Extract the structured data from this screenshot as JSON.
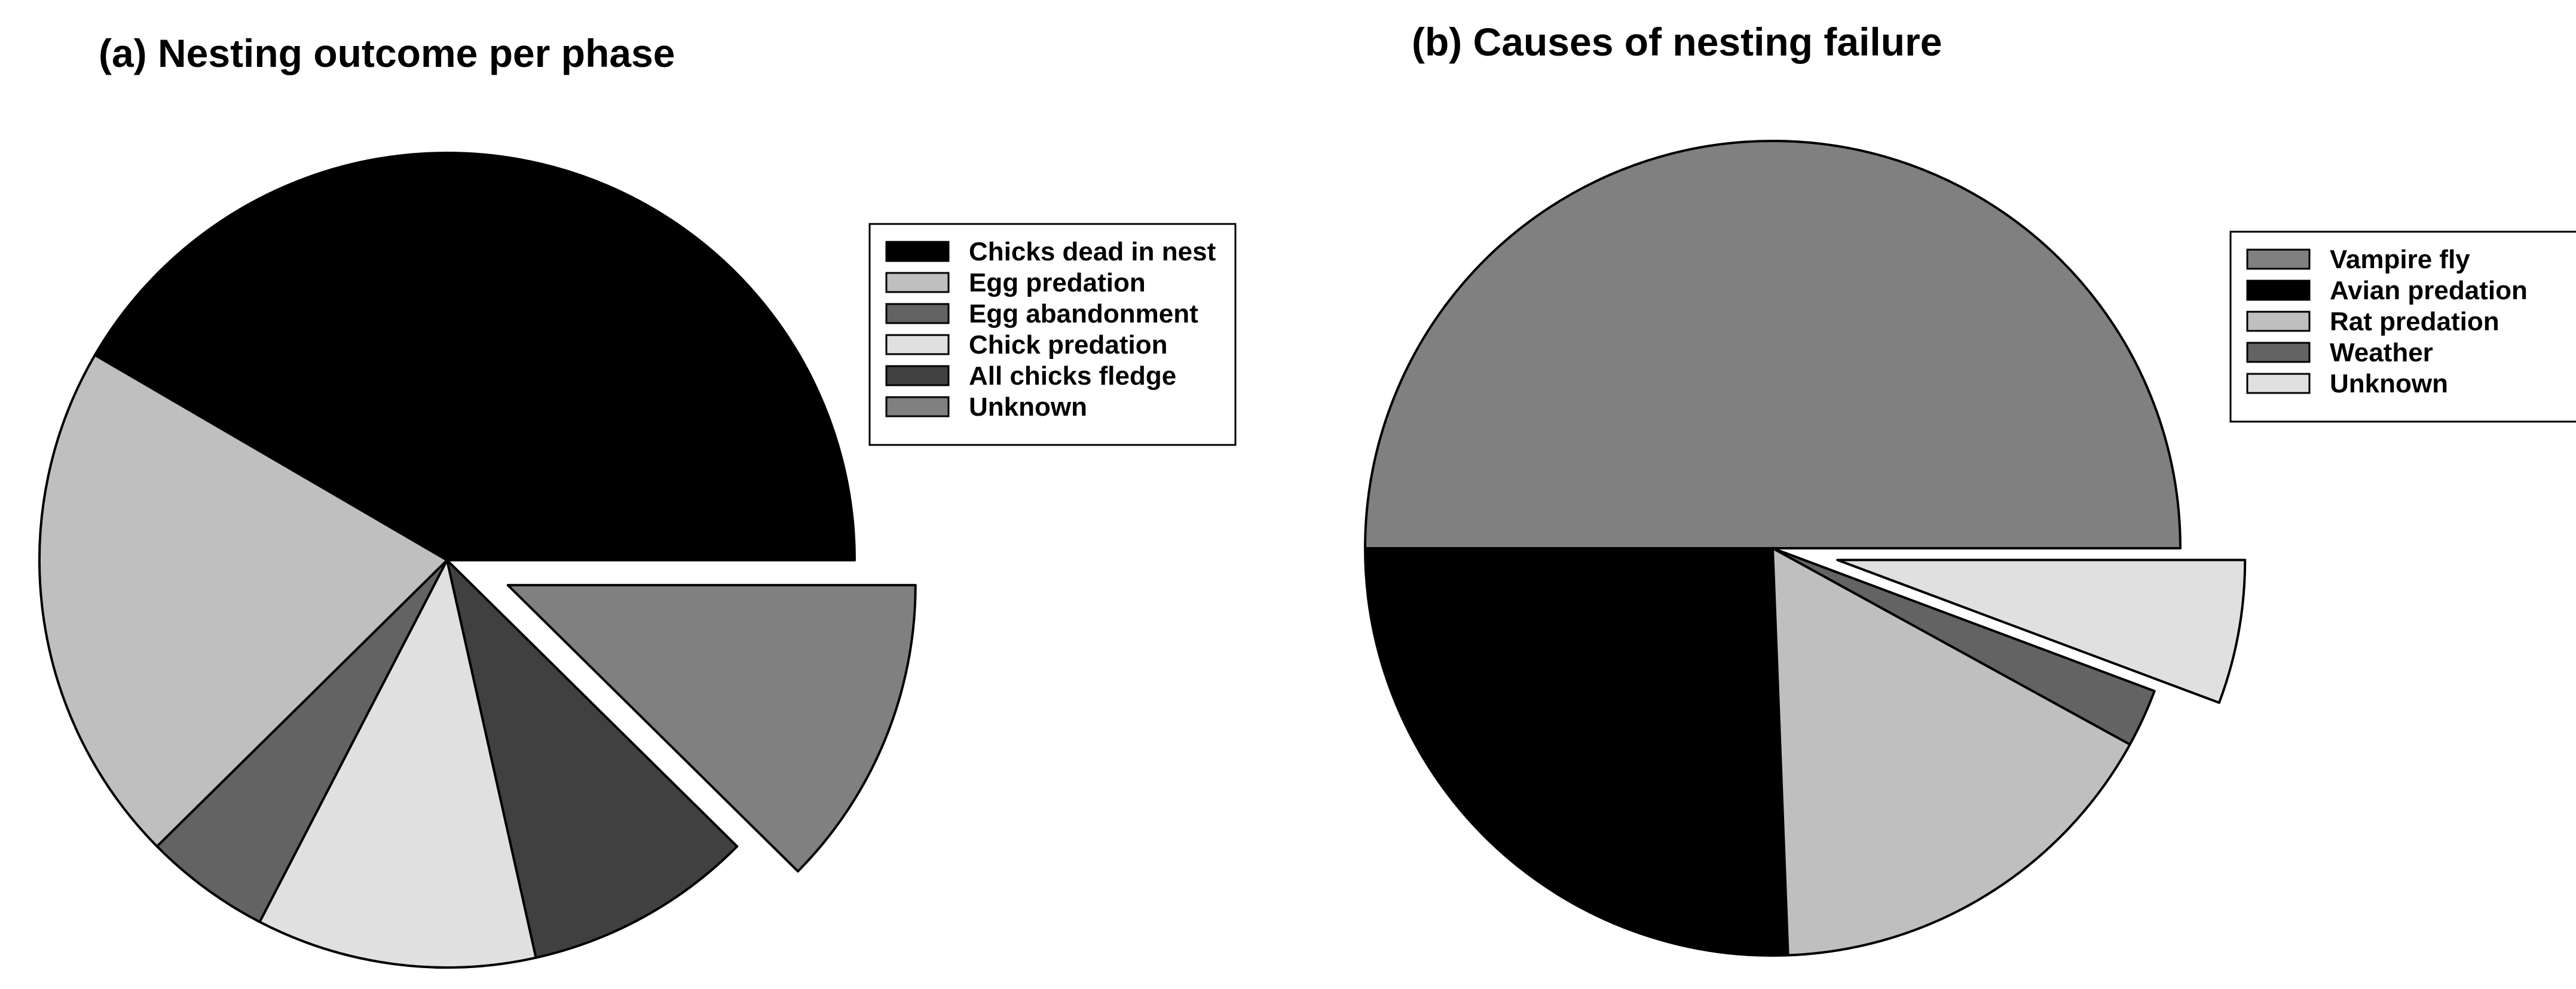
{
  "chart_data": [
    {
      "type": "pie",
      "title": "(a) Nesting outcome per phase",
      "legend_position": "right",
      "slices": [
        {
          "label": "Chicks dead in nest",
          "value": 41.6,
          "color": "#000000",
          "exploded": false
        },
        {
          "label": "Egg predation",
          "value": 20.8,
          "color": "#bfbfbf",
          "exploded": false
        },
        {
          "label": "Egg abandonment",
          "value": 5.0,
          "color": "#636363",
          "exploded": false
        },
        {
          "label": "Chick predation",
          "value": 11.1,
          "color": "#e0e0e0",
          "exploded": false
        },
        {
          "label": "All chicks fledge",
          "value": 9.1,
          "color": "#404040",
          "exploded": false
        },
        {
          "label": "Unknown",
          "value": 12.4,
          "color": "#808080",
          "exploded": true
        }
      ]
    },
    {
      "type": "pie",
      "title": "(b) Causes of nesting failure",
      "legend_position": "right",
      "slices": [
        {
          "label": "Vampire fly",
          "value": 50.0,
          "color": "#808080",
          "exploded": false
        },
        {
          "label": "Avian predation",
          "value": 25.6,
          "color": "#000000",
          "exploded": false
        },
        {
          "label": "Rat predation",
          "value": 16.4,
          "color": "#bfbfbf",
          "exploded": false
        },
        {
          "label": "Weather",
          "value": 2.3,
          "color": "#636363",
          "exploded": false
        },
        {
          "label": "Unknown",
          "value": 5.7,
          "color": "#e0e0e0",
          "exploded": true
        }
      ]
    }
  ]
}
